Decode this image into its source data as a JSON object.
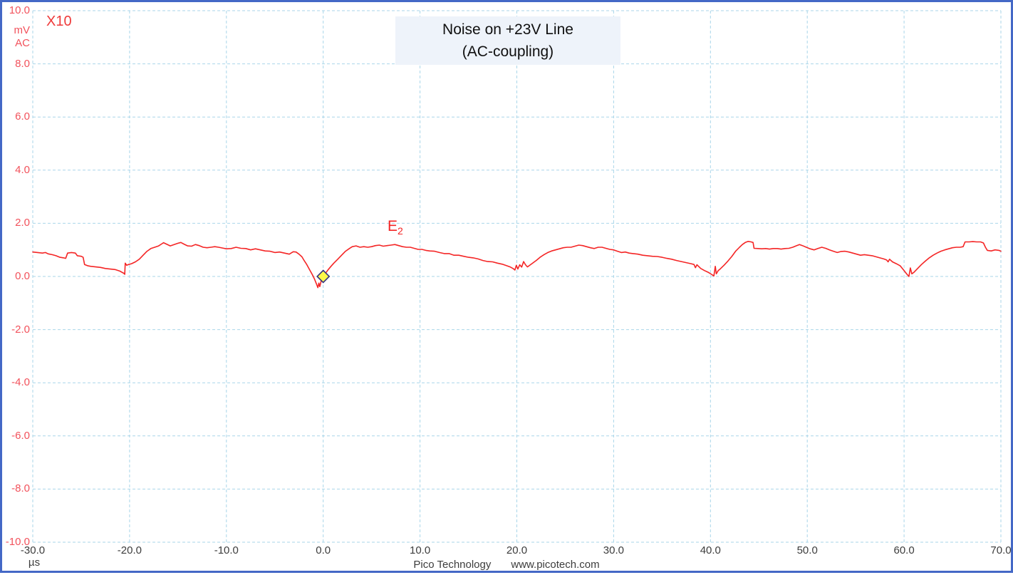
{
  "header": {
    "title_line1": "Noise on +23V Line",
    "title_line2": "(AC-coupling)"
  },
  "y_axis": {
    "unit": "mV",
    "coupling": "AC",
    "probe": "X10",
    "tick_labels": [
      "10.0",
      "8.0",
      "6.0",
      "4.0",
      "2.0",
      "0.0",
      "-2.0",
      "-4.0",
      "-6.0",
      "-8.0",
      "-10.0"
    ],
    "label_color": "#f2525c"
  },
  "x_axis": {
    "unit": "µs",
    "tick_labels": [
      "-30.0",
      "-20.0",
      "-10.0",
      "0.0",
      "10.0",
      "20.0",
      "30.0",
      "40.0",
      "50.0",
      "60.0",
      "70.0"
    ],
    "label_color": "#3c3c3c"
  },
  "trace": {
    "label": "E",
    "label_sub": "2",
    "color": "#f42525"
  },
  "marker": {
    "x_us": 0,
    "y_mv": 0,
    "fill": "#fdf84a",
    "border": "#35357e"
  },
  "footer": {
    "brand": "Pico Technology",
    "url": "www.picotech.com"
  },
  "colors": {
    "grid": "#a9d6e9",
    "window_border": "#4468c6",
    "title_bg": "#eef3fa"
  },
  "chart_data": {
    "type": "line",
    "title": "Noise on +23V Line (AC-coupling)",
    "xlabel": "µs",
    "ylabel": "mV",
    "xlim": [
      -30,
      70
    ],
    "ylim": [
      -10,
      10
    ],
    "grid": true,
    "x_ticks": [
      -30,
      -20,
      -10,
      0,
      10,
      20,
      30,
      40,
      50,
      60,
      70
    ],
    "y_ticks": [
      10,
      8,
      6,
      4,
      2,
      0,
      -2,
      -4,
      -6,
      -8,
      -10
    ],
    "trigger_marker": {
      "x": 0,
      "y": 0
    },
    "series": [
      {
        "name": "E2",
        "color": "#f42525",
        "points": [
          [
            -30,
            0.92
          ],
          [
            -29.5,
            0.9
          ],
          [
            -29,
            0.88
          ],
          [
            -28.7,
            0.9
          ],
          [
            -28.4,
            0.85
          ],
          [
            -28,
            0.82
          ],
          [
            -27.6,
            0.78
          ],
          [
            -27.2,
            0.72
          ],
          [
            -26.8,
            0.7
          ],
          [
            -26.6,
            0.68
          ],
          [
            -26.4,
            0.88
          ],
          [
            -26,
            0.9
          ],
          [
            -25.6,
            0.88
          ],
          [
            -25.4,
            0.78
          ],
          [
            -25,
            0.76
          ],
          [
            -24.8,
            0.72
          ],
          [
            -24.65,
            0.45
          ],
          [
            -24.3,
            0.4
          ],
          [
            -24,
            0.38
          ],
          [
            -23.5,
            0.36
          ],
          [
            -23,
            0.34
          ],
          [
            -22.5,
            0.3
          ],
          [
            -22,
            0.28
          ],
          [
            -21.5,
            0.26
          ],
          [
            -21,
            0.2
          ],
          [
            -20.6,
            0.12
          ],
          [
            -20.5,
            0.08
          ],
          [
            -20.45,
            0.5
          ],
          [
            -20.3,
            0.42
          ],
          [
            -20.1,
            0.45
          ],
          [
            -19.8,
            0.48
          ],
          [
            -19.4,
            0.55
          ],
          [
            -19,
            0.65
          ],
          [
            -18.6,
            0.8
          ],
          [
            -18.2,
            0.95
          ],
          [
            -17.8,
            1.05
          ],
          [
            -17.4,
            1.1
          ],
          [
            -17,
            1.15
          ],
          [
            -16.7,
            1.22
          ],
          [
            -16.5,
            1.27
          ],
          [
            -16.2,
            1.22
          ],
          [
            -15.8,
            1.15
          ],
          [
            -15.4,
            1.2
          ],
          [
            -15,
            1.25
          ],
          [
            -14.7,
            1.28
          ],
          [
            -14.4,
            1.22
          ],
          [
            -14,
            1.15
          ],
          [
            -13.6,
            1.14
          ],
          [
            -13.2,
            1.2
          ],
          [
            -12.8,
            1.16
          ],
          [
            -12.4,
            1.1
          ],
          [
            -12,
            1.08
          ],
          [
            -11.6,
            1.1
          ],
          [
            -11.2,
            1.12
          ],
          [
            -10.8,
            1.1
          ],
          [
            -10.4,
            1.07
          ],
          [
            -10,
            1.04
          ],
          [
            -9.5,
            1.05
          ],
          [
            -9,
            1.1
          ],
          [
            -8.5,
            1.06
          ],
          [
            -8,
            1.05
          ],
          [
            -7.5,
            1.0
          ],
          [
            -7,
            1.04
          ],
          [
            -6.5,
            1.0
          ],
          [
            -6,
            0.96
          ],
          [
            -5.5,
            0.95
          ],
          [
            -5,
            0.9
          ],
          [
            -4.5,
            0.92
          ],
          [
            -4,
            0.88
          ],
          [
            -3.5,
            0.84
          ],
          [
            -3.1,
            0.93
          ],
          [
            -2.8,
            0.92
          ],
          [
            -2.5,
            0.84
          ],
          [
            -2.2,
            0.74
          ],
          [
            -2,
            0.62
          ],
          [
            -1.7,
            0.45
          ],
          [
            -1.4,
            0.25
          ],
          [
            -1.1,
            0.05
          ],
          [
            -0.9,
            -0.1
          ],
          [
            -0.7,
            -0.28
          ],
          [
            -0.55,
            -0.42
          ],
          [
            -0.45,
            -0.25
          ],
          [
            -0.35,
            -0.38
          ],
          [
            -0.2,
            -0.15
          ],
          [
            -0.1,
            -0.05
          ],
          [
            0,
            0.02
          ],
          [
            0.2,
            0.1
          ],
          [
            0.5,
            0.25
          ],
          [
            0.8,
            0.38
          ],
          [
            1.1,
            0.5
          ],
          [
            1.5,
            0.65
          ],
          [
            1.9,
            0.8
          ],
          [
            2.3,
            0.95
          ],
          [
            2.7,
            1.05
          ],
          [
            3,
            1.12
          ],
          [
            3.4,
            1.15
          ],
          [
            3.8,
            1.1
          ],
          [
            4.2,
            1.12
          ],
          [
            4.6,
            1.1
          ],
          [
            5,
            1.12
          ],
          [
            5.4,
            1.16
          ],
          [
            5.8,
            1.18
          ],
          [
            6.2,
            1.14
          ],
          [
            6.6,
            1.16
          ],
          [
            7,
            1.18
          ],
          [
            7.4,
            1.2
          ],
          [
            7.8,
            1.16
          ],
          [
            8.2,
            1.12
          ],
          [
            8.6,
            1.1
          ],
          [
            9,
            1.1
          ],
          [
            9.4,
            1.06
          ],
          [
            9.8,
            1.02
          ],
          [
            10.2,
            1.02
          ],
          [
            10.6,
            0.98
          ],
          [
            11,
            0.96
          ],
          [
            11.5,
            0.95
          ],
          [
            12,
            0.9
          ],
          [
            12.5,
            0.86
          ],
          [
            13,
            0.86
          ],
          [
            13.5,
            0.8
          ],
          [
            14,
            0.8
          ],
          [
            14.5,
            0.76
          ],
          [
            15,
            0.72
          ],
          [
            15.5,
            0.7
          ],
          [
            16,
            0.66
          ],
          [
            16.5,
            0.6
          ],
          [
            17,
            0.56
          ],
          [
            17.5,
            0.55
          ],
          [
            18,
            0.5
          ],
          [
            18.5,
            0.46
          ],
          [
            19,
            0.4
          ],
          [
            19.3,
            0.36
          ],
          [
            19.6,
            0.3
          ],
          [
            19.8,
            0.24
          ],
          [
            19.95,
            0.42
          ],
          [
            20.1,
            0.28
          ],
          [
            20.3,
            0.44
          ],
          [
            20.5,
            0.35
          ],
          [
            20.7,
            0.56
          ],
          [
            20.9,
            0.44
          ],
          [
            21.1,
            0.36
          ],
          [
            21.4,
            0.44
          ],
          [
            21.7,
            0.52
          ],
          [
            22,
            0.6
          ],
          [
            22.4,
            0.72
          ],
          [
            22.8,
            0.82
          ],
          [
            23.2,
            0.9
          ],
          [
            23.6,
            0.96
          ],
          [
            24,
            1.0
          ],
          [
            24.4,
            1.04
          ],
          [
            24.8,
            1.08
          ],
          [
            25.2,
            1.1
          ],
          [
            25.6,
            1.1
          ],
          [
            26,
            1.14
          ],
          [
            26.4,
            1.18
          ],
          [
            26.8,
            1.16
          ],
          [
            27.2,
            1.12
          ],
          [
            27.6,
            1.08
          ],
          [
            28,
            1.05
          ],
          [
            28.4,
            1.1
          ],
          [
            28.8,
            1.1
          ],
          [
            29.2,
            1.06
          ],
          [
            29.6,
            1.02
          ],
          [
            30,
            1.0
          ],
          [
            30.4,
            0.95
          ],
          [
            30.8,
            0.9
          ],
          [
            31.2,
            0.92
          ],
          [
            31.6,
            0.88
          ],
          [
            32,
            0.86
          ],
          [
            32.5,
            0.84
          ],
          [
            33,
            0.8
          ],
          [
            33.5,
            0.78
          ],
          [
            34,
            0.76
          ],
          [
            34.5,
            0.75
          ],
          [
            35,
            0.72
          ],
          [
            35.5,
            0.68
          ],
          [
            36,
            0.65
          ],
          [
            36.5,
            0.6
          ],
          [
            37,
            0.56
          ],
          [
            37.5,
            0.52
          ],
          [
            38,
            0.48
          ],
          [
            38.3,
            0.45
          ],
          [
            38.45,
            0.33
          ],
          [
            38.6,
            0.44
          ],
          [
            39,
            0.3
          ],
          [
            39.4,
            0.22
          ],
          [
            39.8,
            0.15
          ],
          [
            40.1,
            0.08
          ],
          [
            40.35,
            0.02
          ],
          [
            40.5,
            0.38
          ],
          [
            40.6,
            0.1
          ],
          [
            40.8,
            0.22
          ],
          [
            41,
            0.28
          ],
          [
            41.4,
            0.42
          ],
          [
            41.8,
            0.58
          ],
          [
            42.2,
            0.75
          ],
          [
            42.6,
            0.95
          ],
          [
            43,
            1.1
          ],
          [
            43.3,
            1.2
          ],
          [
            43.6,
            1.28
          ],
          [
            43.9,
            1.32
          ],
          [
            44.2,
            1.3
          ],
          [
            44.4,
            1.28
          ],
          [
            44.5,
            1.06
          ],
          [
            44.9,
            1.05
          ],
          [
            45.3,
            1.04
          ],
          [
            45.7,
            1.05
          ],
          [
            46.1,
            1.03
          ],
          [
            46.5,
            1.05
          ],
          [
            46.9,
            1.05
          ],
          [
            47.3,
            1.03
          ],
          [
            47.7,
            1.05
          ],
          [
            48.1,
            1.06
          ],
          [
            48.5,
            1.1
          ],
          [
            48.9,
            1.16
          ],
          [
            49.2,
            1.2
          ],
          [
            49.5,
            1.16
          ],
          [
            49.9,
            1.1
          ],
          [
            50.3,
            1.04
          ],
          [
            50.7,
            1.0
          ],
          [
            51.1,
            1.05
          ],
          [
            51.5,
            1.1
          ],
          [
            51.9,
            1.06
          ],
          [
            52.3,
            1.0
          ],
          [
            52.7,
            0.95
          ],
          [
            53.1,
            0.9
          ],
          [
            53.5,
            0.94
          ],
          [
            53.9,
            0.95
          ],
          [
            54.3,
            0.92
          ],
          [
            54.7,
            0.88
          ],
          [
            55.1,
            0.84
          ],
          [
            55.5,
            0.8
          ],
          [
            55.9,
            0.82
          ],
          [
            56.3,
            0.8
          ],
          [
            56.7,
            0.78
          ],
          [
            57.1,
            0.74
          ],
          [
            57.5,
            0.7
          ],
          [
            57.9,
            0.66
          ],
          [
            58.2,
            0.62
          ],
          [
            58.35,
            0.55
          ],
          [
            58.5,
            0.65
          ],
          [
            58.8,
            0.55
          ],
          [
            59.2,
            0.48
          ],
          [
            59.6,
            0.4
          ],
          [
            60,
            0.22
          ],
          [
            60.3,
            0.08
          ],
          [
            60.5,
            0.0
          ],
          [
            60.65,
            0.32
          ],
          [
            60.8,
            0.1
          ],
          [
            61,
            0.15
          ],
          [
            61.4,
            0.3
          ],
          [
            61.8,
            0.45
          ],
          [
            62.2,
            0.58
          ],
          [
            62.6,
            0.7
          ],
          [
            63,
            0.8
          ],
          [
            63.4,
            0.88
          ],
          [
            63.8,
            0.95
          ],
          [
            64.2,
            1.0
          ],
          [
            64.6,
            1.04
          ],
          [
            65,
            1.08
          ],
          [
            65.4,
            1.1
          ],
          [
            65.8,
            1.1
          ],
          [
            66.1,
            1.12
          ],
          [
            66.3,
            1.3
          ],
          [
            66.7,
            1.3
          ],
          [
            67.1,
            1.31
          ],
          [
            67.5,
            1.3
          ],
          [
            67.9,
            1.3
          ],
          [
            68.2,
            1.26
          ],
          [
            68.4,
            1.1
          ],
          [
            68.6,
            0.98
          ],
          [
            69,
            0.96
          ],
          [
            69.4,
            1.0
          ],
          [
            69.8,
            0.98
          ],
          [
            70,
            0.95
          ]
        ]
      }
    ]
  }
}
